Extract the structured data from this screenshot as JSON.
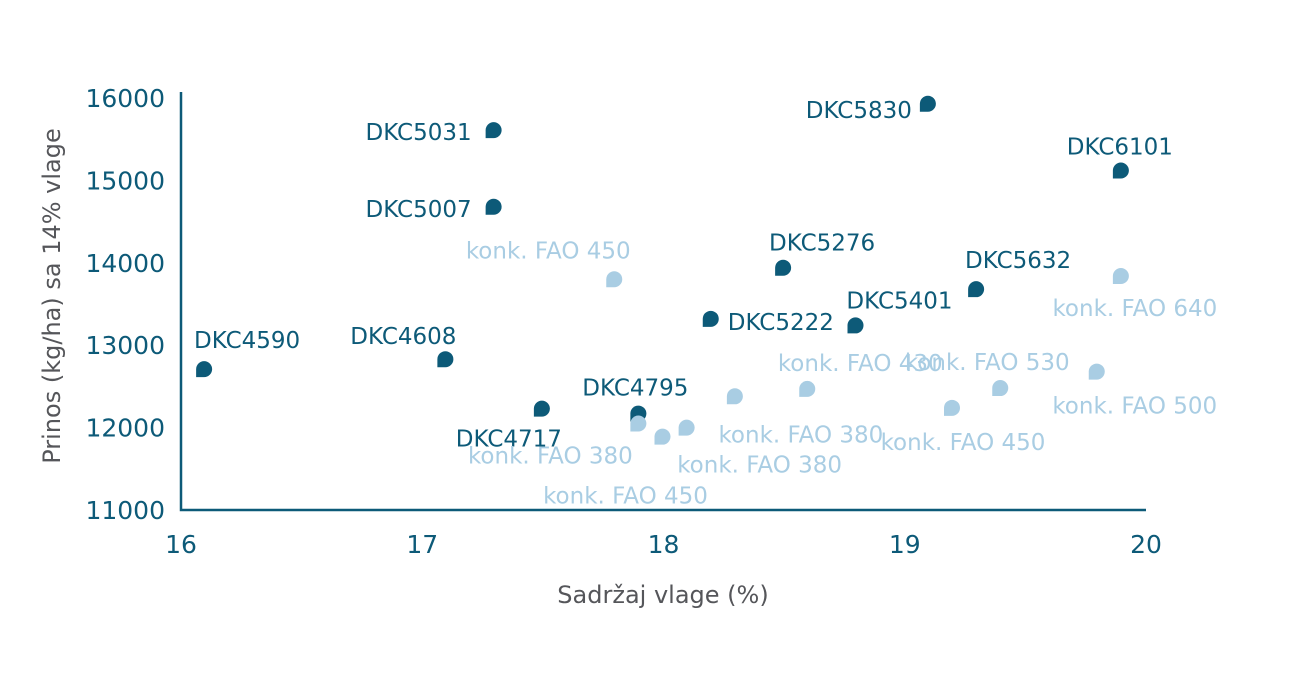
{
  "chart_data": {
    "type": "scatter",
    "xlabel": "Sadržaj vlage (%)",
    "ylabel": "Prinos (kg/ha) sa 14% vlage",
    "xlim": [
      16,
      20
    ],
    "ylim": [
      11000,
      16000
    ],
    "x_ticks": [
      "16",
      "17",
      "18",
      "19",
      "20"
    ],
    "y_ticks": [
      "11000",
      "12000",
      "13000",
      "14000",
      "15000",
      "16000"
    ],
    "grid": false,
    "colors": {
      "dkc": "#0d5a78",
      "konk": "#a9cde3"
    },
    "points": [
      {
        "label": "DKC5830",
        "x": 19.1,
        "y": 15930,
        "group": "dkc"
      },
      {
        "label": "DKC5031",
        "x": 17.3,
        "y": 15610,
        "group": "dkc"
      },
      {
        "label": "DKC6101",
        "x": 19.9,
        "y": 15120,
        "group": "dkc"
      },
      {
        "label": "DKC5007",
        "x": 17.3,
        "y": 14680,
        "group": "dkc"
      },
      {
        "label": "DKC5276",
        "x": 18.5,
        "y": 13940,
        "group": "dkc"
      },
      {
        "label": "DKC5632",
        "x": 19.3,
        "y": 13680,
        "group": "dkc"
      },
      {
        "label": "DKC5222",
        "x": 18.2,
        "y": 13320,
        "group": "dkc"
      },
      {
        "label": "DKC5401",
        "x": 18.8,
        "y": 13240,
        "group": "dkc"
      },
      {
        "label": "DKC4608",
        "x": 17.1,
        "y": 12830,
        "group": "dkc"
      },
      {
        "label": "DKC4590",
        "x": 16.1,
        "y": 12710,
        "group": "dkc"
      },
      {
        "label": "DKC4717",
        "x": 17.5,
        "y": 12230,
        "group": "dkc"
      },
      {
        "label": "DKC4795",
        "x": 17.9,
        "y": 12170,
        "group": "dkc"
      },
      {
        "label": "konk. FAO 450",
        "x": 17.8,
        "y": 13800,
        "group": "konk"
      },
      {
        "label": "konk. FAO 640",
        "x": 19.9,
        "y": 13840,
        "group": "konk"
      },
      {
        "label": "konk. FAO 500",
        "x": 19.8,
        "y": 12680,
        "group": "konk"
      },
      {
        "label": "konk. FAO 430",
        "x": 18.6,
        "y": 12470,
        "group": "konk"
      },
      {
        "label": "konk. FAO 530",
        "x": 19.4,
        "y": 12480,
        "group": "konk"
      },
      {
        "label": "konk. FAO 380",
        "x": 18.3,
        "y": 12380,
        "group": "konk"
      },
      {
        "label": "konk. FAO 450",
        "x": 19.2,
        "y": 12240,
        "group": "konk"
      },
      {
        "label": "konk. FAO 380",
        "x": 17.9,
        "y": 12050,
        "group": "konk"
      },
      {
        "label": "konk. FAO 380",
        "x": 18.1,
        "y": 12000,
        "group": "konk"
      },
      {
        "label": "konk. FAO 450",
        "x": 18.0,
        "y": 11890,
        "group": "konk"
      }
    ]
  }
}
